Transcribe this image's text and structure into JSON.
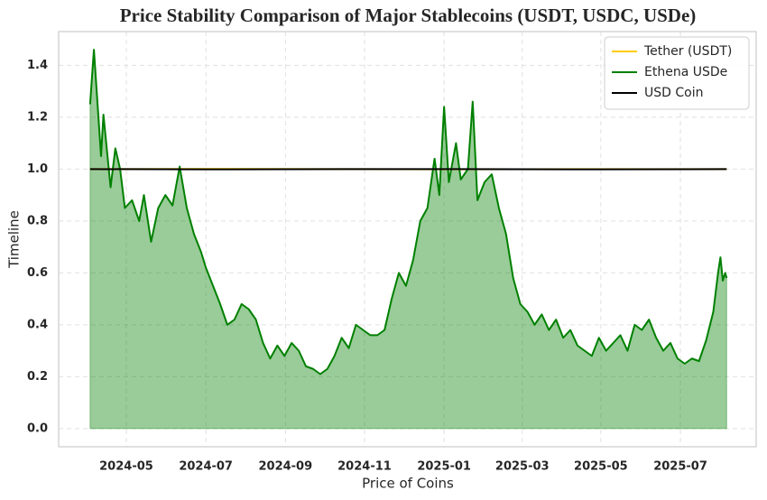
{
  "chart_data": {
    "type": "line",
    "title": "Price Stability Comparison of Major Stablecoins (USDT, USDC, USDe)",
    "x_label": "Price of Coins",
    "y_label": "Timeline",
    "xlim": [
      2024.191,
      2025.655
    ],
    "xticks": [
      {
        "value": 2024.333,
        "label": "2024-05"
      },
      {
        "value": 2024.5,
        "label": "2024-07"
      },
      {
        "value": 2024.667,
        "label": "2024-09"
      },
      {
        "value": 2024.833,
        "label": "2024-11"
      },
      {
        "value": 2025.0,
        "label": "2025-01"
      },
      {
        "value": 2025.164,
        "label": "2025-03"
      },
      {
        "value": 2025.329,
        "label": "2025-05"
      },
      {
        "value": 2025.496,
        "label": "2025-07"
      }
    ],
    "ylim": [
      -0.07,
      1.53
    ],
    "yticks": [
      {
        "value": 0,
        "label": "0.0"
      },
      {
        "value": 0.2,
        "label": "0.2"
      },
      {
        "value": 0.4,
        "label": "0.4"
      },
      {
        "value": 0.6,
        "label": "0.6"
      },
      {
        "value": 0.8,
        "label": "0.8"
      },
      {
        "value": 1,
        "label": "1.0"
      },
      {
        "value": 1.2,
        "label": "1.2"
      },
      {
        "value": 1.4,
        "label": "1.4"
      }
    ],
    "grid": true,
    "legend": "upper right",
    "series": [
      {
        "name": "Tether (USDT)",
        "color": "#ffcc00",
        "area": false,
        "x": [
          2024.257,
          2024.5,
          2024.8,
          2025.0,
          2025.3,
          2025.593
        ],
        "values": [
          1.0,
          1.001,
          1.0,
          0.999,
          1.0,
          1.0
        ]
      },
      {
        "name": "Ethena USDe",
        "color": "#008000",
        "area": true,
        "x": [
          2024.257,
          2024.265,
          2024.28,
          2024.285,
          2024.3,
          2024.31,
          2024.32,
          2024.33,
          2024.345,
          2024.36,
          2024.37,
          2024.385,
          2024.4,
          2024.415,
          2024.43,
          2024.445,
          2024.46,
          2024.475,
          2024.49,
          2024.5,
          2024.515,
          2024.53,
          2024.545,
          2024.56,
          2024.575,
          2024.59,
          2024.605,
          2024.62,
          2024.635,
          2024.65,
          2024.665,
          2024.68,
          2024.695,
          2024.71,
          2024.725,
          2024.74,
          2024.755,
          2024.77,
          2024.785,
          2024.8,
          2024.815,
          2024.83,
          2024.845,
          2024.86,
          2024.875,
          2024.89,
          2024.905,
          2024.92,
          2024.935,
          2024.95,
          2024.965,
          2024.98,
          2024.99,
          2025.0,
          2025.01,
          2025.025,
          2025.035,
          2025.05,
          2025.06,
          2025.07,
          2025.085,
          2025.1,
          2025.115,
          2025.13,
          2025.145,
          2025.16,
          2025.175,
          2025.19,
          2025.205,
          2025.22,
          2025.235,
          2025.25,
          2025.265,
          2025.28,
          2025.295,
          2025.31,
          2025.325,
          2025.34,
          2025.355,
          2025.37,
          2025.385,
          2025.4,
          2025.415,
          2025.43,
          2025.445,
          2025.46,
          2025.475,
          2025.49,
          2025.505,
          2025.52,
          2025.535,
          2025.55,
          2025.565,
          2025.575,
          2025.58,
          2025.585,
          2025.59,
          2025.593
        ],
        "values": [
          1.25,
          1.46,
          1.05,
          1.21,
          0.93,
          1.08,
          1.0,
          0.85,
          0.88,
          0.8,
          0.9,
          0.72,
          0.85,
          0.9,
          0.86,
          1.01,
          0.85,
          0.75,
          0.68,
          0.62,
          0.55,
          0.48,
          0.4,
          0.42,
          0.48,
          0.46,
          0.42,
          0.33,
          0.27,
          0.32,
          0.28,
          0.33,
          0.3,
          0.24,
          0.23,
          0.21,
          0.23,
          0.28,
          0.35,
          0.31,
          0.4,
          0.38,
          0.36,
          0.36,
          0.38,
          0.5,
          0.6,
          0.55,
          0.65,
          0.8,
          0.85,
          1.04,
          0.9,
          1.24,
          0.95,
          1.1,
          0.96,
          1.0,
          1.26,
          0.88,
          0.95,
          0.98,
          0.85,
          0.75,
          0.58,
          0.48,
          0.45,
          0.4,
          0.44,
          0.38,
          0.42,
          0.35,
          0.38,
          0.32,
          0.3,
          0.28,
          0.35,
          0.3,
          0.33,
          0.36,
          0.3,
          0.4,
          0.38,
          0.42,
          0.35,
          0.3,
          0.33,
          0.27,
          0.25,
          0.27,
          0.26,
          0.34,
          0.45,
          0.6,
          0.66,
          0.57,
          0.6,
          0.58
        ]
      },
      {
        "name": "USD Coin",
        "color": "#000000",
        "area": false,
        "x": [
          2024.257,
          2024.5,
          2024.8,
          2025.0,
          2025.3,
          2025.593
        ],
        "values": [
          1.0,
          0.999,
          1.0,
          1.0,
          0.999,
          1.0
        ]
      }
    ]
  }
}
